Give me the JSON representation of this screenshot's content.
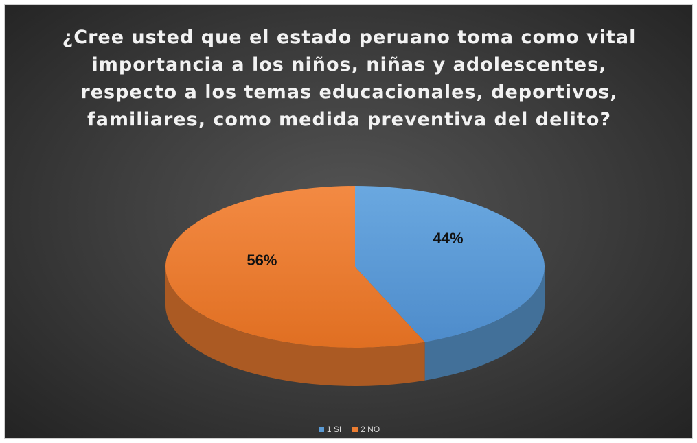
{
  "chart_data": {
    "type": "pie",
    "title": "¿Cree usted que el estado peruano toma como vital importancia a los niños, niñas y adolescentes, respecto a los temas educacionales, deportivos, familiares, como medida preventiva del delito?",
    "categories": [
      "1 SI",
      "2 NO"
    ],
    "values": [
      44,
      56
    ],
    "data_labels": [
      "44%",
      "56%"
    ],
    "colors": [
      "#5b9bd5",
      "#ed7d31"
    ],
    "legend_position": "bottom",
    "style": "3d"
  }
}
